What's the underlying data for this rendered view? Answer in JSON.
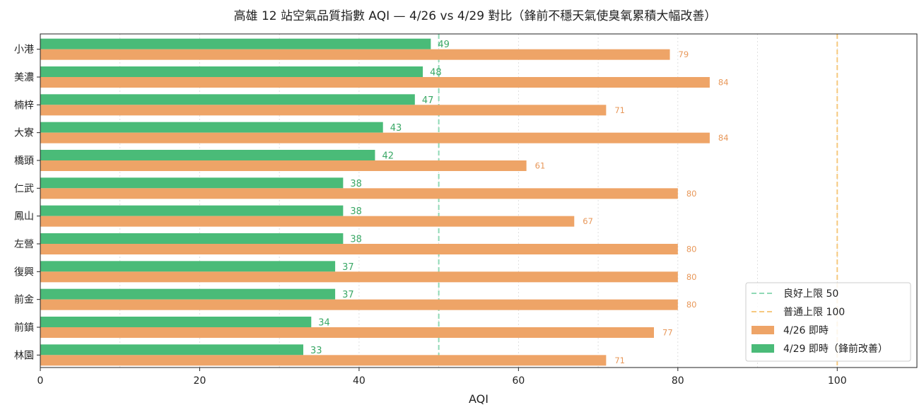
{
  "chart_data": {
    "type": "bar",
    "orientation": "horizontal",
    "title": "高雄 12 站空氣品質指數 AQI — 4/26 vs 4/29 對比（鋒前不穩天氣使臭氧累積大幅改善）",
    "xlabel": "AQI",
    "ylabel": "",
    "xlim": [
      0,
      110
    ],
    "xticks": [
      0,
      20,
      40,
      60,
      80,
      100
    ],
    "grid": "x-dotted",
    "legend_position": "lower-right",
    "categories": [
      "小港",
      "美濃",
      "楠梓",
      "大寮",
      "橋頭",
      "仁武",
      "鳳山",
      "左營",
      "復興",
      "前金",
      "前鎮",
      "林園"
    ],
    "series": [
      {
        "name": "4/26 即時",
        "color": "#eea467",
        "values": [
          79,
          84,
          71,
          84,
          61,
          80,
          67,
          80,
          80,
          80,
          77,
          71
        ]
      },
      {
        "name": "4/29 即時（鋒前改善）",
        "color": "#4abb78",
        "values": [
          49,
          48,
          47,
          43,
          42,
          38,
          38,
          38,
          37,
          37,
          34,
          33
        ]
      }
    ],
    "reference_lines": [
      {
        "name": "良好上限 50",
        "value": 50,
        "color": "#8fd9b6"
      },
      {
        "name": "普通上限 100",
        "value": 100,
        "color": "#f6c97f"
      }
    ]
  }
}
